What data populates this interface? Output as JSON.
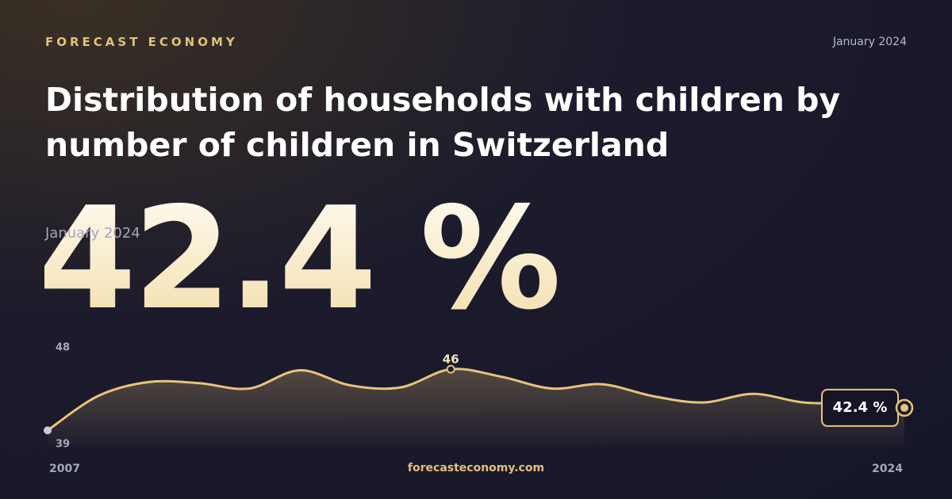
{
  "chart_data": {
    "type": "line",
    "brand": "FORECAST ECONOMY",
    "date": "January 2024",
    "title": "Distribution of households with children by number of children in Switzerland",
    "headline": {
      "value": 42.4,
      "label": "42.4 %"
    },
    "source": "forecasteconomy.com",
    "x": [
      2007,
      2008,
      2009,
      2010,
      2011,
      2012,
      2013,
      2014,
      2015,
      2016,
      2017,
      2018,
      2019,
      2020,
      2021,
      2022,
      2023,
      2024
    ],
    "xlim": [
      2007,
      2024
    ],
    "xticks": [
      2007,
      2024
    ],
    "ylim": [
      39,
      48
    ],
    "yticks": [
      48,
      39
    ],
    "color": "#e8c37a",
    "values": [
      40.3,
      43.5,
      44.8,
      44.7,
      44.2,
      45.9,
      44.5,
      44.3,
      46,
      45.3,
      44.2,
      44.6,
      43.5,
      42.9,
      43.7,
      42.9,
      42.8,
      42.4
    ],
    "value_labels": [
      null,
      null,
      null,
      null,
      null,
      null,
      null,
      null,
      null,
      null,
      null,
      null,
      null,
      null,
      null,
      null,
      null,
      "42.4 %"
    ]
  }
}
